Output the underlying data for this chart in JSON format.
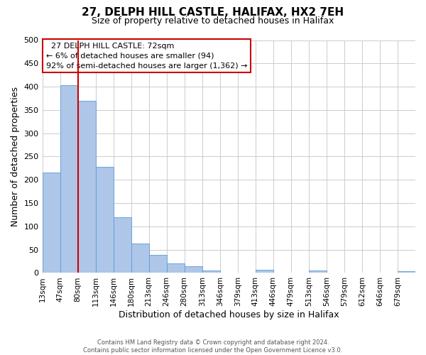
{
  "title_line1": "27, DELPH HILL CASTLE, HALIFAX, HX2 7EH",
  "subtitle": "Size of property relative to detached houses in Halifax",
  "xlabel": "Distribution of detached houses by size in Halifax",
  "ylabel": "Number of detached properties",
  "bin_labels": [
    "13sqm",
    "47sqm",
    "80sqm",
    "113sqm",
    "146sqm",
    "180sqm",
    "213sqm",
    "246sqm",
    "280sqm",
    "313sqm",
    "346sqm",
    "379sqm",
    "413sqm",
    "446sqm",
    "479sqm",
    "513sqm",
    "546sqm",
    "579sqm",
    "612sqm",
    "646sqm",
    "679sqm"
  ],
  "bar_heights": [
    215,
    403,
    370,
    228,
    119,
    63,
    39,
    21,
    14,
    5,
    0,
    0,
    7,
    0,
    0,
    5,
    0,
    0,
    0,
    0,
    3
  ],
  "bar_color": "#aec6e8",
  "bar_edge_color": "#5b9bd5",
  "vline_x": 2.0,
  "vline_color": "#cc0000",
  "ylim": [
    0,
    500
  ],
  "yticks": [
    0,
    50,
    100,
    150,
    200,
    250,
    300,
    350,
    400,
    450,
    500
  ],
  "annotation_title": "27 DELPH HILL CASTLE: 72sqm",
  "annotation_line2": "← 6% of detached houses are smaller (94)",
  "annotation_line3": "92% of semi-detached houses are larger (1,362) →",
  "annotation_box_color": "#ffffff",
  "annotation_box_edge": "#cc0000",
  "footer_line1": "Contains HM Land Registry data © Crown copyright and database right 2024.",
  "footer_line2": "Contains public sector information licensed under the Open Government Licence v3.0.",
  "bg_color": "#ffffff",
  "grid_color": "#cccccc"
}
